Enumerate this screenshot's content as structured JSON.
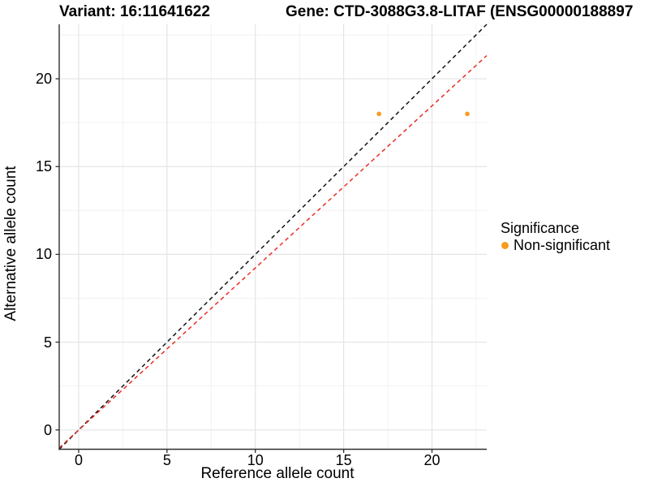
{
  "figure": {
    "title_variant": "Variant: 16:11641622",
    "title_gene": "Gene: CTD-3088G3.8-LITAF (ENSG00000188897",
    "background": "#FFFFFF"
  },
  "chart_data": {
    "type": "scatter",
    "title": "Variant: 16:11641622 | Gene: CTD-3088G3.8-LITAF (ENSG00000188897...)",
    "xlabel": "Reference allele count",
    "ylabel": "Alternative allele count",
    "xlim": [
      -1.1,
      23.1
    ],
    "ylim": [
      -1.1,
      23.1
    ],
    "xticks": [
      0,
      5,
      10,
      15,
      20
    ],
    "yticks": [
      0,
      5,
      10,
      15,
      20
    ],
    "xminor": [
      2.5,
      7.5,
      12.5,
      17.5,
      22.5
    ],
    "yminor": [
      2.5,
      7.5,
      12.5,
      17.5,
      22.5
    ],
    "grid": {
      "show": true,
      "major_color": "#E4E4E4",
      "minor_color": "#F2F2F2"
    },
    "axis_color": "#2F2F2F",
    "points": [
      {
        "x": 17,
        "y": 18,
        "series": "Non-significant"
      },
      {
        "x": 22,
        "y": 18,
        "series": "Non-significant"
      }
    ],
    "point_color": "#F79B1F",
    "point_radius_px": 2.8,
    "lines": [
      {
        "name": "identity-line",
        "color": "#111111",
        "dash": "5,4",
        "width": 1.5,
        "x1": -1.1,
        "y1": -1.1,
        "x2": 23.1,
        "y2": 23.1
      },
      {
        "name": "allelic-ratio-line",
        "color": "#EC2C24",
        "dash": "5,4",
        "width": 1.5,
        "x1": -1.1,
        "y1": -1.02,
        "x2": 23.1,
        "y2": 21.32
      }
    ],
    "legend": {
      "position": "right",
      "title": "Significance",
      "items": [
        {
          "label": "Non-significant",
          "color": "#F79B1F"
        }
      ]
    }
  }
}
